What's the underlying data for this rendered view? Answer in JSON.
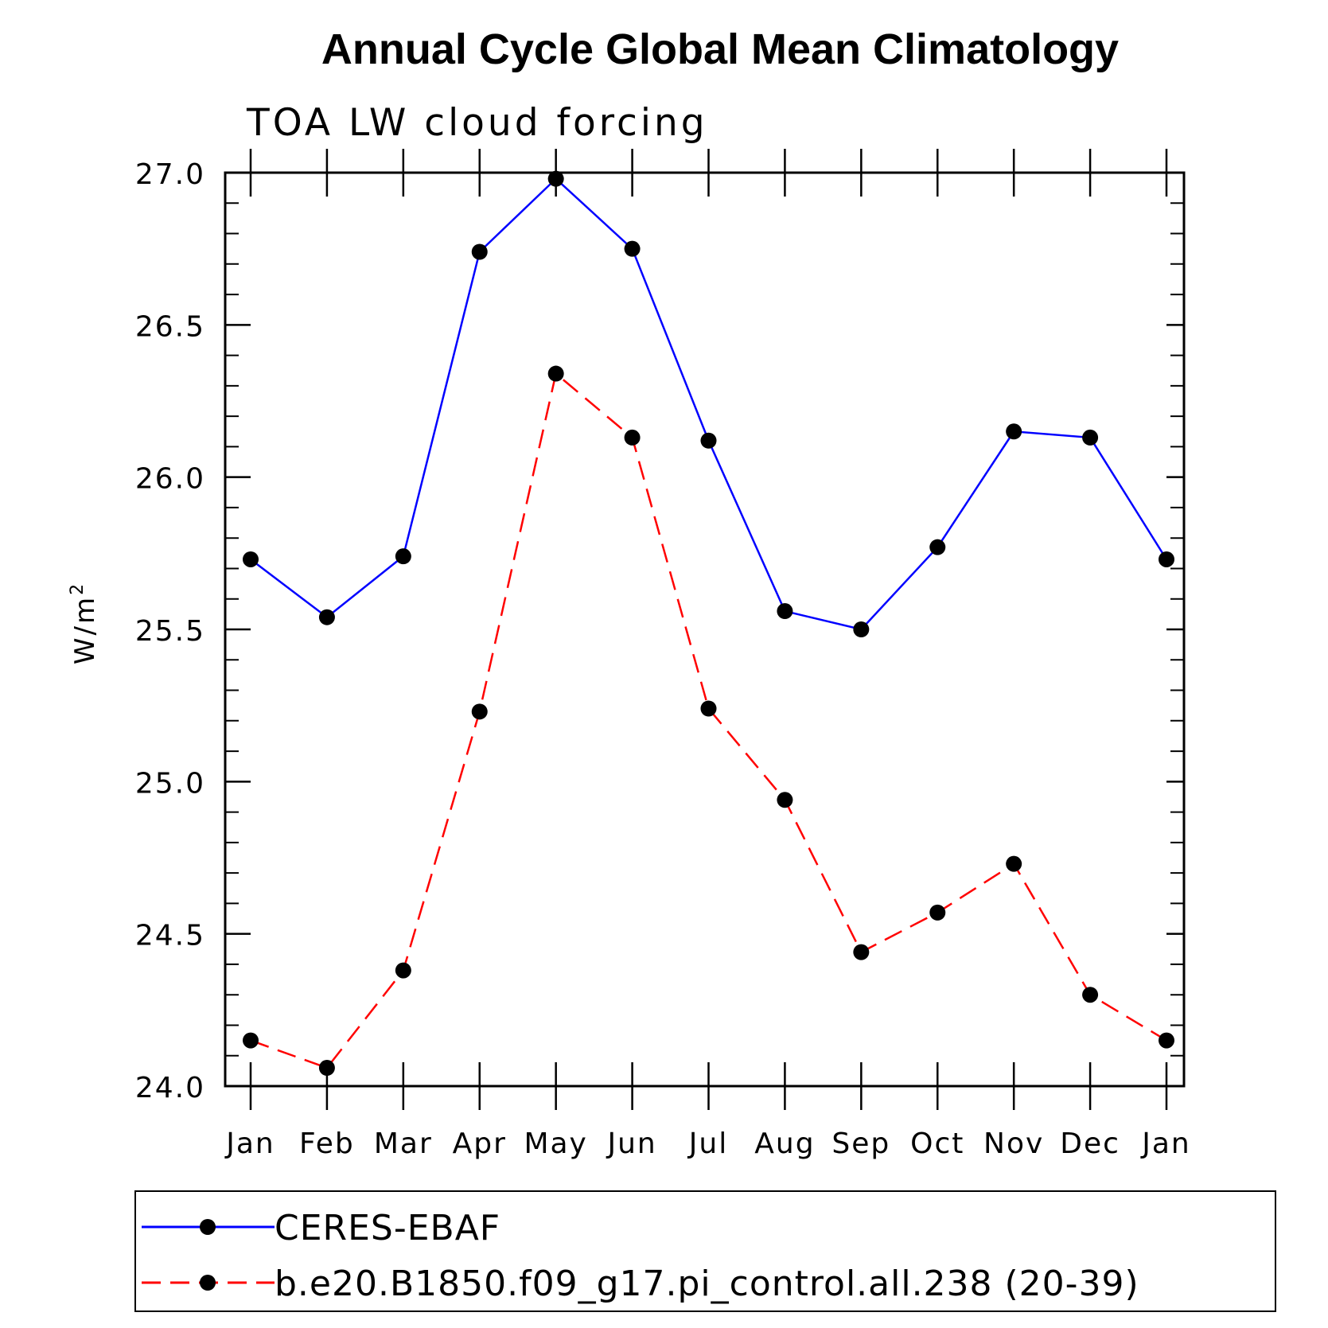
{
  "chart_data": {
    "type": "line",
    "title": "Annual Cycle Global Mean Climatology",
    "subtitle": "TOA LW cloud forcing",
    "ylabel": "W/m",
    "ylabel_superscript": "2",
    "ylim": [
      24.0,
      27.0
    ],
    "yticks": [
      "24.0",
      "24.5",
      "25.0",
      "25.5",
      "26.0",
      "26.5",
      "27.0"
    ],
    "categories": [
      "Jan",
      "Feb",
      "Mar",
      "Apr",
      "May",
      "Jun",
      "Jul",
      "Aug",
      "Sep",
      "Oct",
      "Nov",
      "Dec",
      "Jan"
    ],
    "series": [
      {
        "name": "CERES-EBAF",
        "color": "#0000ff",
        "dash": "solid",
        "marker": "filled-circle",
        "values": [
          25.73,
          25.54,
          25.74,
          26.74,
          26.98,
          26.75,
          26.12,
          25.56,
          25.5,
          25.77,
          26.15,
          26.13,
          25.73
        ]
      },
      {
        "name": "b.e20.B1850.f09_g17.pi_control.all.238 (20-39)",
        "color": "#ff0000",
        "dash": "dashed",
        "marker": "filled-circle",
        "values": [
          24.15,
          24.06,
          24.38,
          25.23,
          26.34,
          26.13,
          25.24,
          24.94,
          24.44,
          24.57,
          24.73,
          24.3,
          24.15
        ]
      }
    ],
    "legend_position": "bottom"
  }
}
